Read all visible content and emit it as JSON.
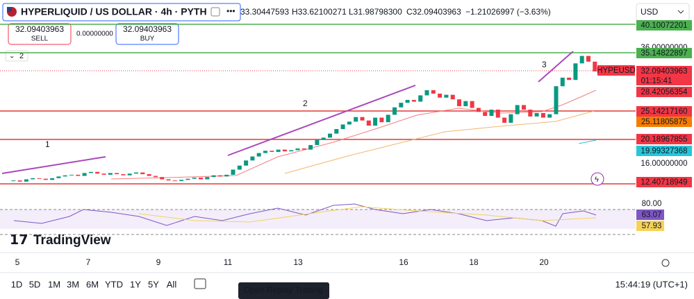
{
  "header": {
    "symbol": "HYPERLIQUID / US DOLLAR · 4h · PYTH",
    "open": "33.30447593",
    "high": "H33.62100271",
    "low": "L31.98798300",
    "close": "C32.09403963",
    "change": "−1.21026997 (−3.63%)",
    "currency": "USD"
  },
  "trade": {
    "sell_price": "32.09403963",
    "sell": "SELL",
    "spread": "0.00000000",
    "buy_price": "32.09403963",
    "buy": "BUY"
  },
  "indicators_count": "2",
  "chart": {
    "type": "candlestick",
    "ylim": [
      9.98,
      40.95
    ],
    "close": [
      12.9,
      13.0,
      12.8,
      13.2,
      13.4,
      13.3,
      13.1,
      13.4,
      13.7,
      13.9,
      14.0,
      13.8,
      14.3,
      14.5,
      14.2,
      14.0,
      14.3,
      14.1,
      13.9,
      14.2,
      14.4,
      14.1,
      13.8,
      13.6,
      13.2,
      13.0,
      12.9,
      13.1,
      13.3,
      13.5,
      13.2,
      13.6,
      13.9,
      13.7,
      14.0,
      14.9,
      15.6,
      16.5,
      17.2,
      17.8,
      18.2,
      18.0,
      18.4,
      18.1,
      18.3,
      18.6,
      18.4,
      19.2,
      20.1,
      20.5,
      21.2,
      22.0,
      22.8,
      23.3,
      24.1,
      23.5,
      22.6,
      24.0,
      23.2,
      24.5,
      25.8,
      26.6,
      27.1,
      26.8,
      27.9,
      28.8,
      28.2,
      27.5,
      28.0,
      27.2,
      26.0,
      26.9,
      25.7,
      25.0,
      24.3,
      25.4,
      24.0,
      23.1,
      24.6,
      26.2,
      25.4,
      24.2,
      24.8,
      24.0,
      24.6,
      29.5,
      31.0,
      30.6,
      33.5,
      34.8,
      33.8,
      32.09
    ]
  },
  "waves": [
    "1",
    "2",
    "3"
  ],
  "symbol_tag": "HYPEUSD",
  "countdown": "01:15:41",
  "price_labels": [
    "40.10072201",
    "36.00000000",
    "35.14822897",
    "32.09403963",
    "28.42056354",
    "25.14217160",
    "25.11805875",
    "20.18967855",
    "19.99327368",
    "16.00000000",
    "12.40718949"
  ],
  "rsi_labels": [
    "80.00",
    "63.07",
    "57.93"
  ],
  "logo": "TradingView",
  "time_labels": [
    "5",
    "7",
    "9",
    "11",
    "13",
    "16",
    "18",
    "20"
  ],
  "ranges": [
    "1D",
    "5D",
    "1M",
    "3M",
    "6M",
    "YTD",
    "1Y",
    "5Y",
    "All"
  ],
  "clock": "15:44:19 (UTC+1)",
  "tooltip": "Open Replay Trading"
}
